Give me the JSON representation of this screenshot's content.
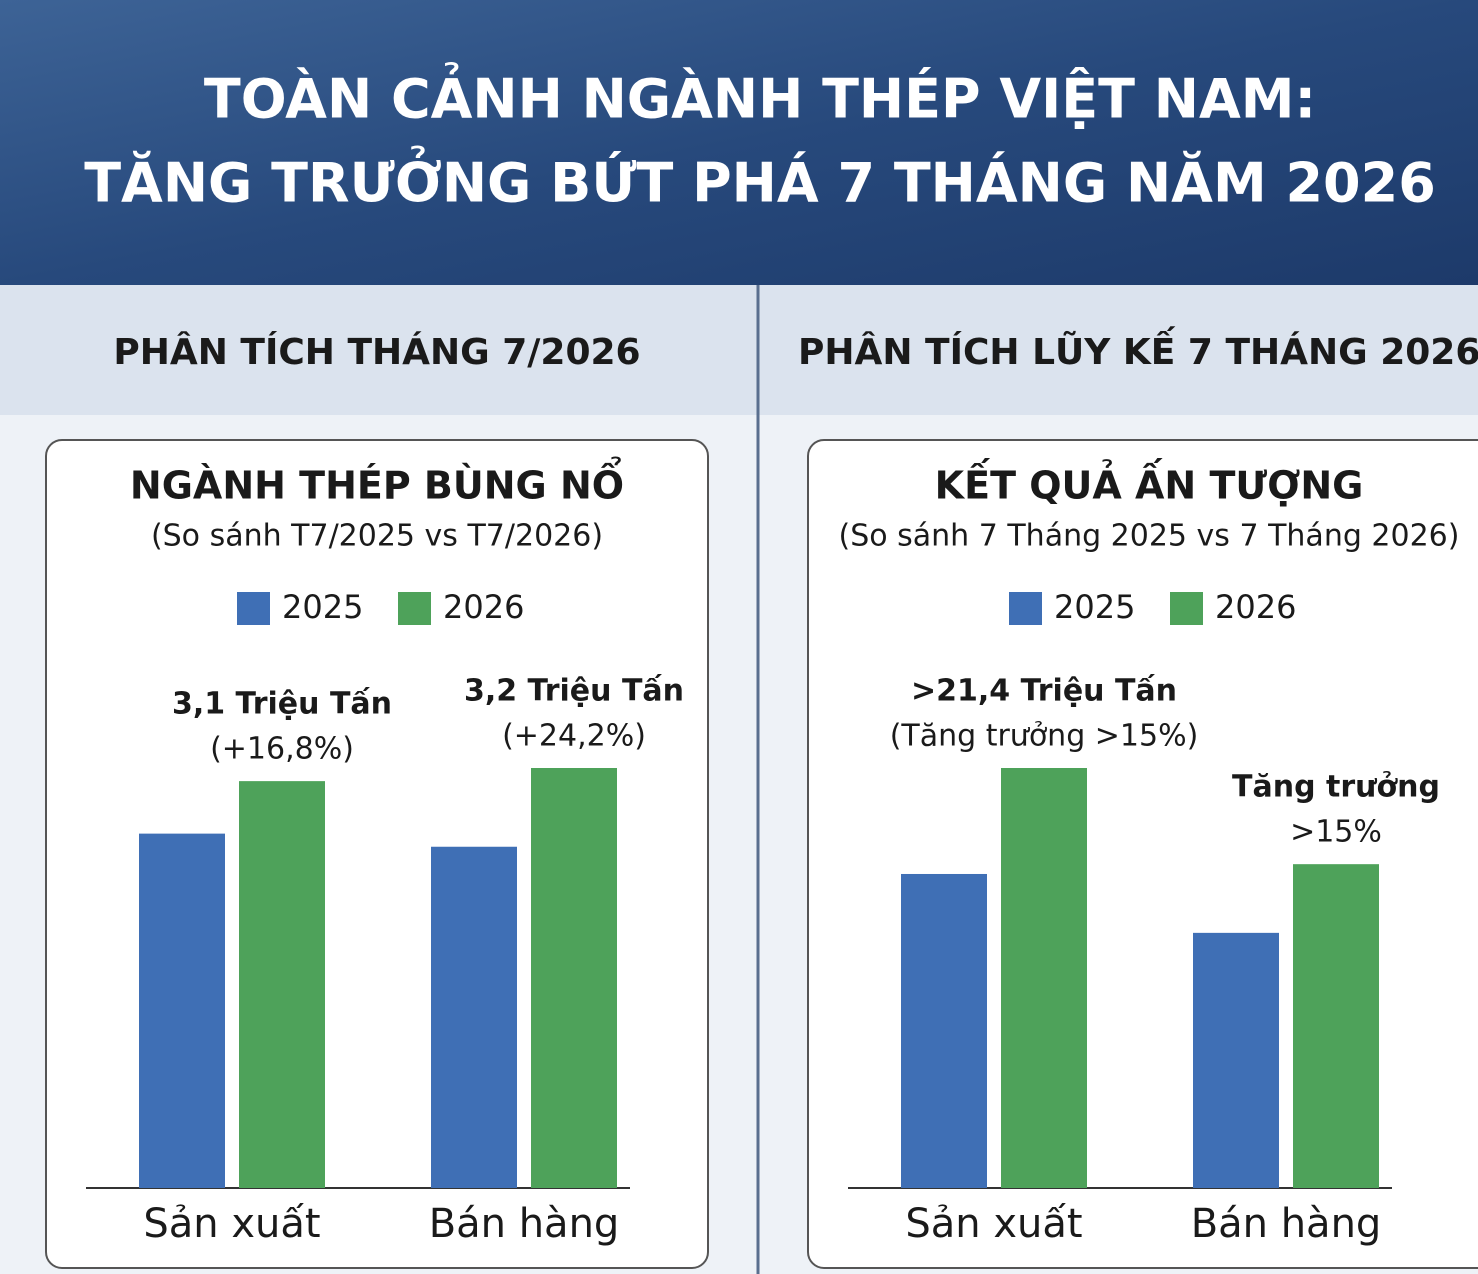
{
  "header": {
    "title": [
      "TOÀN CẢNH NGÀNH THÉP VIỆT NAM:",
      "TĂNG TRƯỞNG BỨT PHÁ 7 THÁNG NĂM 2026"
    ]
  },
  "sections": [
    "PHÂN TÍCH THÁNG 7/2026",
    "PHÂN TÍCH LŨY KẾ 7 THÁNG 2026"
  ],
  "chart_data": [
    {
      "type": "bar",
      "title": "NGÀNH THÉP BÙNG NỔ",
      "subtitle": "(So sánh T7/2025 vs T7/2026)",
      "categories": [
        "Sản xuất",
        "Bán hàng"
      ],
      "series": [
        {
          "name": "2025",
          "color": "#3f6fb5",
          "values": [
            2.7,
            2.6
          ]
        },
        {
          "name": "2026",
          "color": "#4ea25a",
          "values": [
            3.1,
            3.2
          ],
          "value_labels": [
            "3,1 Triệu Tấn",
            "3,2 Triệu Tấn"
          ],
          "annotations": [
            [
              "(+16,8%)"
            ],
            [
              "(+24,2%)"
            ]
          ]
        }
      ]
    },
    {
      "type": "bar",
      "title": "KẾT QUẢ ẤN TƯỢNG",
      "subtitle": "(So sánh 7 Tháng 2025 vs 7 Tháng 2026)",
      "categories": [
        "Sản xuất",
        "Bán hàng"
      ],
      "series": [
        {
          "name": "2025",
          "color": "#3f6fb5",
          "values": [
            16.0,
            13.0
          ]
        },
        {
          "name": "2026",
          "color": "#4ea25a",
          "values": [
            21.4,
            16.5
          ],
          "value_labels": [
            ">21,4 Triệu Tấn",
            null
          ],
          "annotations": [
            [
              "(Tăng trưởng >15%)"
            ],
            [
              "Tăng trưởng",
              ">15%"
            ]
          ]
        }
      ]
    }
  ]
}
